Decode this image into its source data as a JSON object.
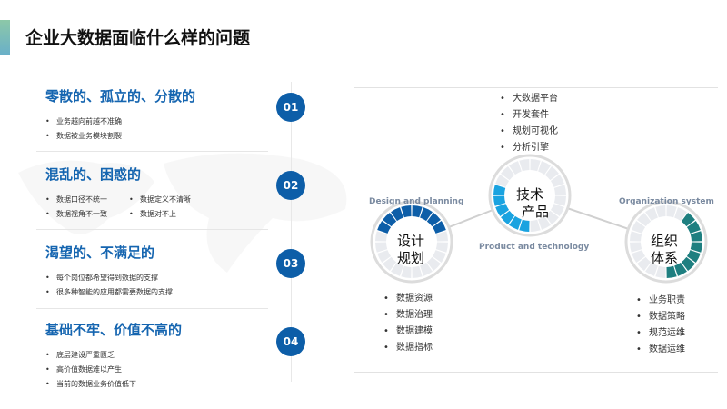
{
  "title": "企业大数据面临什么样的问题",
  "sections": [
    {
      "num": "01",
      "heading": "零散的、孤立的、分散的",
      "bullets": [
        "业务越向前越不准确",
        "数据被业务模块割裂"
      ]
    },
    {
      "num": "02",
      "heading": "混乱的、困惑的",
      "bullets": [
        "数据口径不统一",
        "数据定义不清晰",
        "数据视角不一致",
        "数据对不上"
      ]
    },
    {
      "num": "03",
      "heading": "渴望的、不满足的",
      "bullets": [
        "每个岗位都希望得到数据的支撑",
        "很多种智能的应用都需要数据的支撑"
      ]
    },
    {
      "num": "04",
      "heading": "基础不牢、价值不高的",
      "bullets": [
        "底层建设严重匮乏",
        "高价值数据难以产生",
        "当前的数据业务价值低下"
      ]
    }
  ],
  "diagram": {
    "design": {
      "en": "Design and planning",
      "line1": "设计",
      "line2": "规划",
      "items": [
        "数据资源",
        "数据治理",
        "数据建模",
        "数据指标"
      ],
      "color": "#0d5ea8"
    },
    "tech": {
      "en": "Product and technology",
      "line1": "技术",
      "line2": "产品",
      "items": [
        "大数据平台",
        "开发套件",
        "规划可视化",
        "分析引擎"
      ],
      "color": "#1aa3e0"
    },
    "org": {
      "en": "Organization system",
      "line1": "组织",
      "line2": "体系",
      "items": [
        "业务职责",
        "数据策略",
        "规范运维",
        "数据运维"
      ],
      "color": "#1e7f80"
    }
  }
}
